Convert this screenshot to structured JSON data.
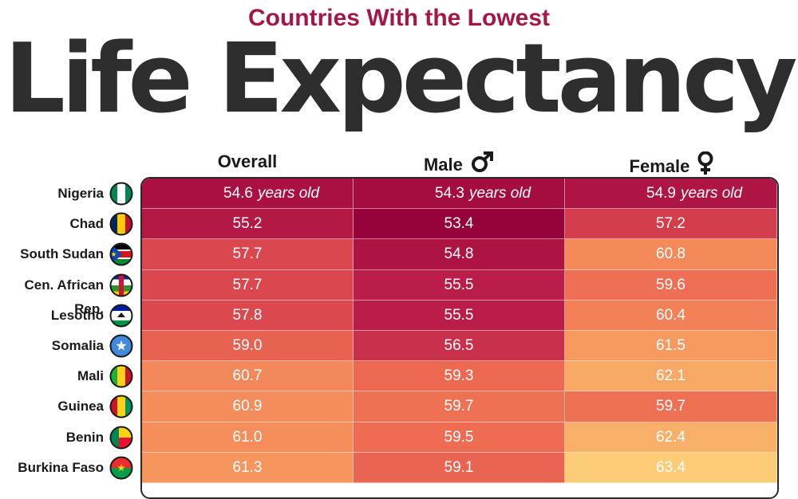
{
  "header": {
    "subtitle": "Countries With the Lowest",
    "title": "Life Expectancy"
  },
  "columns": {
    "overall": "Overall",
    "male": "Male",
    "female": "Female"
  },
  "unit_text": "years old",
  "icons": {
    "male": "male-symbol-icon",
    "female": "female-symbol-icon"
  },
  "colors": {
    "subtitle": "#a3174a",
    "title": "#2e2e2e",
    "scale_darkest": "#96023a",
    "scale_lightest": "#fdd17a"
  },
  "chart_data": {
    "type": "table",
    "title": "Life Expectancy",
    "subtitle": "Countries With the Lowest",
    "columns": [
      "Overall",
      "Male",
      "Female"
    ],
    "rows": [
      {
        "country": "Nigeria",
        "overall": 54.6,
        "male": 54.3,
        "female": 54.9
      },
      {
        "country": "Chad",
        "overall": 55.2,
        "male": 53.4,
        "female": 57.2
      },
      {
        "country": "South Sudan",
        "overall": 57.7,
        "male": 54.8,
        "female": 60.8
      },
      {
        "country": "Cen. African Rep.",
        "overall": 57.7,
        "male": 55.5,
        "female": 59.6
      },
      {
        "country": "Lesotho",
        "overall": 57.8,
        "male": 55.5,
        "female": 60.4
      },
      {
        "country": "Somalia",
        "overall": 59.0,
        "male": 56.5,
        "female": 61.5
      },
      {
        "country": "Mali",
        "overall": 60.7,
        "male": 59.3,
        "female": 62.1
      },
      {
        "country": "Guinea",
        "overall": 60.9,
        "male": 59.7,
        "female": 59.7
      },
      {
        "country": "Benin",
        "overall": 61.0,
        "male": 59.5,
        "female": 62.4
      },
      {
        "country": "Burkina Faso",
        "overall": 61.3,
        "male": 59.1,
        "female": 63.4
      }
    ],
    "flags": [
      "nigeria-flag-icon",
      "chad-flag-icon",
      "south-sudan-flag-icon",
      "central-african-republic-flag-icon",
      "lesotho-flag-icon",
      "somalia-flag-icon",
      "mali-flag-icon",
      "guinea-flag-icon",
      "benin-flag-icon",
      "burkina-faso-flag-icon"
    ]
  }
}
